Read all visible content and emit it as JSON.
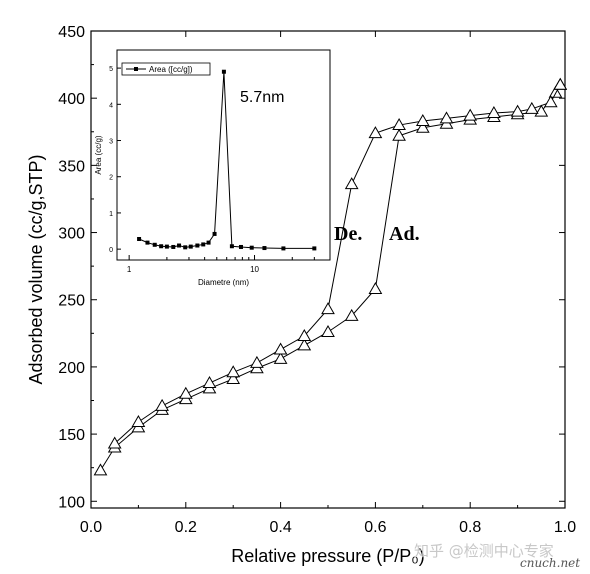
{
  "chart_data": [
    {
      "type": "line",
      "xlabel": "Relative pressure (P/P₀)",
      "ylabel": "Adsorbed volume (cc/g,STP)",
      "xlim": [
        0.0,
        1.0
      ],
      "ylim": [
        95,
        450
      ],
      "xticks": [
        0.0,
        0.2,
        0.4,
        0.6,
        0.8,
        1.0
      ],
      "yticks": [
        100,
        150,
        200,
        250,
        300,
        350,
        400,
        450
      ],
      "xtick_labels": [
        "0.0",
        "0.2",
        "0.4",
        "0.6",
        "0.8",
        "1.0"
      ],
      "ytick_labels": [
        "100",
        "150",
        "200",
        "250",
        "300",
        "350",
        "400",
        "450"
      ],
      "marker": "open-triangle",
      "grid": false,
      "annotations": [
        "De.",
        "Ad."
      ],
      "series": [
        {
          "x": [
            0.02,
            0.05,
            0.1,
            0.15,
            0.2,
            0.25,
            0.3,
            0.35,
            0.4,
            0.45,
            0.5,
            0.55,
            0.6,
            0.65,
            0.7,
            0.75,
            0.8,
            0.85,
            0.9,
            0.95,
            0.98,
            0.99
          ],
          "y": [
            123,
            140,
            155,
            168,
            176,
            184,
            191,
            199,
            206,
            216,
            226,
            238,
            258,
            372,
            378,
            381,
            384,
            386,
            388,
            390,
            404,
            410
          ]
        },
        {
          "x": [
            0.99,
            0.97,
            0.93,
            0.9,
            0.85,
            0.8,
            0.75,
            0.7,
            0.65,
            0.6,
            0.55,
            0.5,
            0.45,
            0.4,
            0.35,
            0.3,
            0.25,
            0.2,
            0.15,
            0.1,
            0.05
          ],
          "y": [
            410,
            397,
            392,
            390,
            389,
            387,
            385,
            383,
            380,
            374,
            336,
            243,
            223,
            213,
            203,
            196,
            188,
            180,
            171,
            159,
            143
          ]
        }
      ]
    },
    {
      "type": "line",
      "xlabel": "Diametre (nm)",
      "ylabel": "Area (cc/g)",
      "xscale": "log",
      "xlim": [
        0.8,
        40
      ],
      "ylim": [
        -0.3,
        5.5
      ],
      "xticks": [
        1,
        10
      ],
      "xtick_labels": [
        "1",
        "10"
      ],
      "yticks": [
        0,
        1,
        2,
        3,
        4,
        5
      ],
      "ytick_labels": [
        "0",
        "1",
        "2",
        "3",
        "4",
        "5"
      ],
      "marker": "filled-square",
      "legend": "Area ([cc/g])",
      "legend_position": "top-left",
      "annotations": [
        "5.7nm"
      ],
      "series": [
        {
          "x": [
            1.2,
            1.4,
            1.6,
            1.8,
            2.0,
            2.25,
            2.5,
            2.8,
            3.1,
            3.5,
            3.9,
            4.3,
            4.8,
            5.7,
            6.6,
            7.8,
            9.5,
            12.0,
            17.0,
            30.0
          ],
          "y": [
            0.28,
            0.18,
            0.12,
            0.08,
            0.07,
            0.06,
            0.1,
            0.05,
            0.07,
            0.1,
            0.13,
            0.18,
            0.42,
            4.9,
            0.08,
            0.06,
            0.04,
            0.03,
            0.02,
            0.02
          ]
        }
      ]
    }
  ],
  "watermark": {
    "text": "知乎 @检测中心专家",
    "domain": "cnuch.net"
  }
}
